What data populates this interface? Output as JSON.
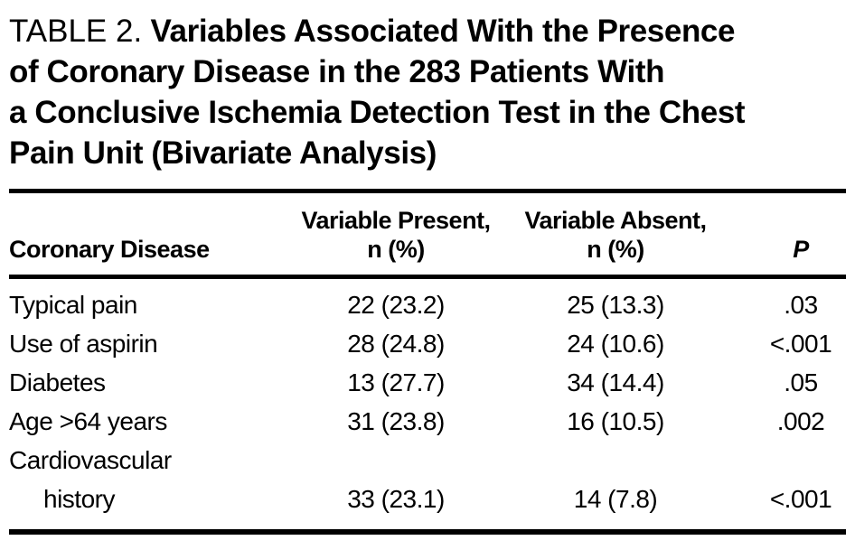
{
  "caption": {
    "table_label": "TABLE 2.",
    "title_lines": [
      "Variables Associated With the Presence",
      "of Coronary Disease in the 283 Patients With",
      "a Conclusive Ischemia Detection Test in the Chest",
      "Pain Unit (Bivariate Analysis)"
    ]
  },
  "table": {
    "col_headers": {
      "col1": "Coronary Disease",
      "col2_line1": "Variable Present,",
      "col2_line2": "n (%)",
      "col3_line1": "Variable Absent,",
      "col3_line2": "n (%)",
      "col4": "P"
    },
    "rows": [
      {
        "variable": "Typical pain",
        "present": "22 (23.2)",
        "absent": "25 (13.3)",
        "p": ".03"
      },
      {
        "variable": "Use of aspirin",
        "present": "28 (24.8)",
        "absent": "24 (10.6)",
        "p": "<.001"
      },
      {
        "variable": "Diabetes",
        "present": "13 (27.7)",
        "absent": "34 (14.4)",
        "p": ".05"
      },
      {
        "variable": "Age >64 years",
        "present": "31 (23.8)",
        "absent": "16 (10.5)",
        "p": ".002"
      },
      {
        "variable_line1": "Cardiovascular",
        "variable_line2": "history",
        "present": "33 (23.1)",
        "absent": "14 (7.8)",
        "p": "<.001"
      }
    ]
  },
  "colors": {
    "text": "#000000",
    "background": "#ffffff",
    "rule": "#000000"
  }
}
